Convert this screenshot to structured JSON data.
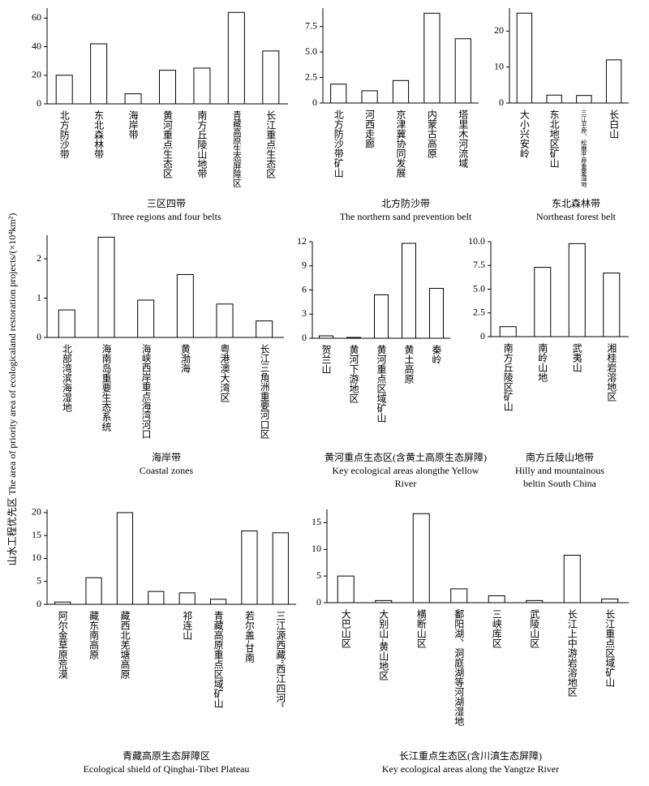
{
  "y_axis_label": "山水工程优先区 The area of priority area of ecologicaland restoration projects/(×10⁴km²)",
  "chart_data": [
    {
      "type": "bar",
      "title": "三区四带",
      "subtitle": "Three regions and four belts",
      "color": "#ffffff",
      "categories": [
        "北方防沙带",
        "东北森林带",
        "海岸带",
        "黄河重点生态区",
        "南方丘陵山地带",
        "青藏高原生态屏障区",
        "长江重点生态区"
      ],
      "values": [
        20,
        42,
        7,
        23.5,
        25,
        64,
        37
      ],
      "ylim": [
        0,
        67
      ],
      "yticks": [
        0,
        20,
        40,
        60
      ]
    },
    {
      "type": "bar",
      "title": "北方防沙带",
      "subtitle": "The northern sand prevention belt",
      "color": "#ffffff",
      "categories": [
        "北方防沙带矿山",
        "河西走廊",
        "京津冀协同发展",
        "内蒙古高原",
        "塔里木河流域"
      ],
      "values": [
        1.85,
        1.2,
        2.2,
        8.8,
        6.3
      ],
      "ylim": [
        0,
        9.3
      ],
      "yticks": [
        0,
        2.5,
        {
          "value": 5,
          "label": "5.0"
        },
        7.5
      ]
    },
    {
      "type": "bar",
      "title": "东北森林带",
      "subtitle": "Northeast forest belt",
      "color": "#ffffff",
      "categories": [
        "大小兴安岭",
        "东北地区矿山",
        "三江平原、松嫩平原重要湿地",
        "长白山"
      ],
      "values": [
        25,
        2.2,
        2.1,
        12
      ],
      "ylim": [
        0,
        26.4
      ],
      "yticks": [
        0,
        10,
        20
      ]
    },
    {
      "type": "bar",
      "title": "海岸带",
      "subtitle": "Coastal zones",
      "color": "#ffffff",
      "categories": [
        "北部湾滨海湿地",
        "海南岛重要生态系统",
        "海峡西岸重点海湾河口",
        "黄渤海",
        "粤港澳大湾区",
        "长江三角洲重要河口区"
      ],
      "values": [
        0.7,
        2.55,
        0.95,
        1.6,
        0.85,
        0.42
      ],
      "ylim": [
        0,
        2.6
      ],
      "yticks": [
        0,
        1,
        2
      ]
    },
    {
      "type": "bar",
      "title": "黄河重点生态区(含黄土高原生态屏障)",
      "subtitle": "Key ecological areas alongthe Yellow River",
      "color": "#ffffff",
      "categories": [
        "贺兰山",
        "黄河下游地区",
        "黄河重点区域矿山",
        "黄土高原",
        "秦岭"
      ],
      "values": [
        0.3,
        0.1,
        5.4,
        11.8,
        6.2
      ],
      "ylim": [
        0,
        12
      ],
      "yticks": [
        0,
        3,
        6,
        9,
        12
      ]
    },
    {
      "type": "bar",
      "title": "南方丘陵山地带",
      "subtitle": "Hilly and mountainous beltin South China",
      "color": "#ffffff",
      "categories": [
        "南方丘陵区矿山",
        "南岭山地",
        "武夷山",
        "湘桂岩溶地区"
      ],
      "values": [
        1.05,
        7.3,
        9.8,
        6.7
      ],
      "ylim": [
        0,
        10
      ],
      "yticks": [
        0,
        2.5,
        {
          "value": 5,
          "label": "5.0"
        },
        7.5,
        {
          "value": 10,
          "label": "10.0"
        }
      ]
    },
    {
      "type": "bar",
      "title": "青藏高原生态屏障区",
      "subtitle": "Ecological shield of Qinghai-Tibet Plateau",
      "color": "#ffffff",
      "categories": [
        "阿尔金草原荒漠",
        "藏东南高原",
        "藏西北羌塘高原",
        null,
        "祁连山",
        "青藏高原重点区域矿山",
        "若尔盖-甘南",
        "三江源西藏“西江四河”"
      ],
      "values": [
        0.5,
        5.8,
        20,
        2.8,
        2.5,
        1.1,
        16,
        15.6
      ],
      "ylim": [
        0,
        20.7
      ],
      "yticks": [
        0,
        5,
        10,
        15,
        20
      ]
    },
    {
      "type": "bar",
      "title": "长江重点生态区(含川滇生态屏障)",
      "subtitle": "Key ecological areas along the Yangtze River",
      "color": "#ffffff",
      "categories": [
        "大巴山区",
        "大别山-黄山地区",
        "横断山区",
        "鄱阳湖、洞庭湖等河湖湿地",
        "三峡库区",
        "武陵山区",
        "长江上中游岩溶地区",
        "长江重点区域矿山"
      ],
      "values": [
        5,
        0.4,
        16.7,
        2.6,
        1.3,
        0.4,
        8.9,
        0.7
      ],
      "ylim": [
        0,
        17.5
      ],
      "yticks": [
        0,
        5,
        10,
        15
      ]
    }
  ]
}
